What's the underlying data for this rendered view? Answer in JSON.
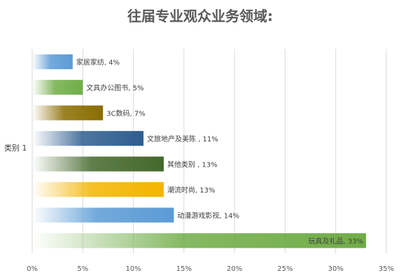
{
  "chart_data": {
    "type": "bar",
    "orientation": "horizontal",
    "title": "往届专业观众业务领域:",
    "category_axis_label": "类别 1",
    "x_ticks": [
      "0%",
      "5%",
      "10%",
      "15%",
      "20%",
      "25%",
      "30%",
      "35%"
    ],
    "xlim": [
      0,
      35
    ],
    "grid": true,
    "legend": "none",
    "series": [
      {
        "values": [
          {
            "label": "家居家纺",
            "value": 4,
            "data_label": "家居家纺, 4%",
            "color": "#5b9bd5"
          },
          {
            "label": "文具办公图书",
            "value": 5,
            "data_label": "文具办公图书, 5%",
            "color": "#70ad47"
          },
          {
            "label": "3C数码",
            "value": 7,
            "data_label": "3C数码, 7%",
            "color": "#8a6d00"
          },
          {
            "label": "文旅地产及美陈",
            "value": 11,
            "data_label": "文旅地产及美陈 , 11%",
            "color": "#2e5d8f"
          },
          {
            "label": "其他类别",
            "value": 13,
            "data_label": "其他类别 , 13%",
            "color": "#43682b"
          },
          {
            "label": "潮流时尚",
            "value": 13,
            "data_label": "潮流时尚, 13%",
            "color": "#f4b400"
          },
          {
            "label": "动漫游戏影视",
            "value": 14,
            "data_label": "动漫游戏影视, 14%",
            "color": "#5b9bd5"
          },
          {
            "label": "玩具及礼品",
            "value": 33,
            "data_label": "玩具及礼品, 33%",
            "color": "#70ad47"
          }
        ]
      }
    ]
  }
}
